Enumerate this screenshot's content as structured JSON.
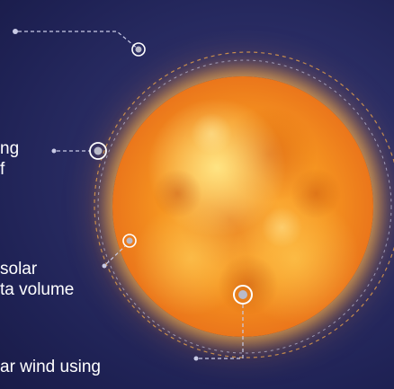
{
  "labels": {
    "item_1": [
      "ng",
      "f"
    ],
    "item_2": [
      "solar",
      "ta volume"
    ],
    "item_3": [
      "ar wind using"
    ]
  },
  "colors": {
    "background": "#2b2e66",
    "sun_core": "#f59320",
    "sun_rim": "#ffcc5a",
    "connector": "#c9cbe6",
    "orbit_dash": "#e8a24a",
    "node_fill": "#b9bac9"
  },
  "icons": [
    "sun-image",
    "node-marker-icon",
    "dashed-orbit",
    "dashed-connector"
  ]
}
